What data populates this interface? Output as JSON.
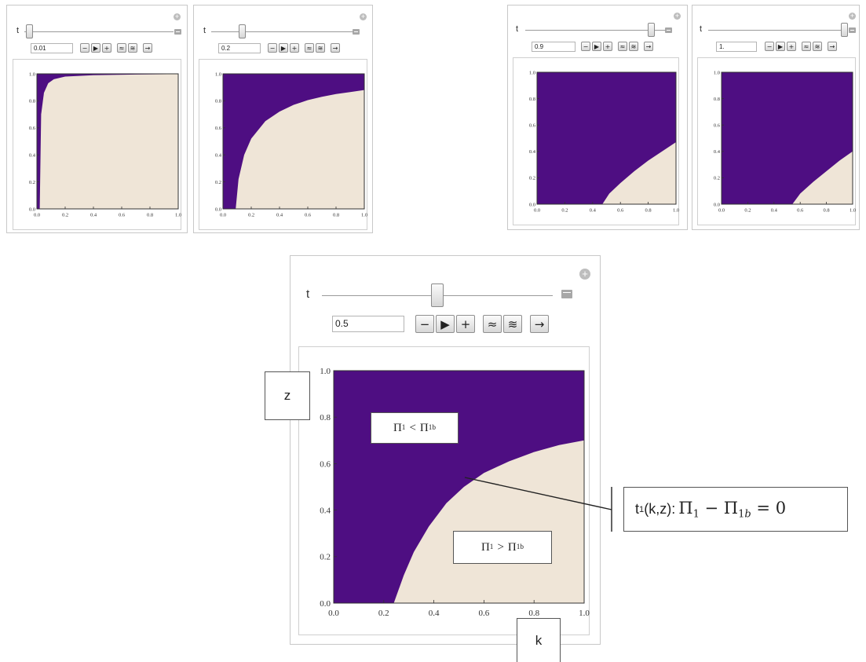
{
  "slider_label": "t",
  "panels": [
    {
      "id": "small-001",
      "t_value": "0.01",
      "slider_fraction": 0.01
    },
    {
      "id": "small-02",
      "t_value": "0.2",
      "slider_fraction": 0.2
    },
    {
      "id": "small-09",
      "t_value": "0.9",
      "slider_fraction": 0.9
    },
    {
      "id": "small-1",
      "t_value": "1.",
      "slider_fraction": 1.0
    },
    {
      "id": "main",
      "t_value": "0.5",
      "slider_fraction": 0.5
    }
  ],
  "buttons": {
    "decrement": "−",
    "play": "▶",
    "increment": "+",
    "faster": "≈",
    "slower": "≋",
    "direction": "→",
    "faster_icon": "double-chevron-up-icon",
    "slower_icon": "double-chevron-down-icon",
    "direction_icon": "arrow-right-icon"
  },
  "tick_labels": [
    "0.0",
    "0.2",
    "0.4",
    "0.6",
    "0.8",
    "1.0"
  ],
  "colors": {
    "region_below": "#4e0e82",
    "region_above": "#efe5d7"
  },
  "annotations": {
    "z_axis": "z",
    "k_axis": "k",
    "region_upper_label": {
      "lhs": "Π",
      "lhs_sub": "1",
      "op": "<",
      "rhs": "Π",
      "rhs_sub": "1b"
    },
    "region_lower_label": {
      "lhs": "Π",
      "lhs_sub": "1",
      "op": ">",
      "rhs": "Π",
      "rhs_sub": "1b"
    },
    "boundary_label": {
      "name": "t",
      "name_sub": "1",
      "args": "(k,z): ",
      "expr": "Π",
      "expr_sub": "1",
      "minus": " − ",
      "expr2": "Π",
      "expr2_sub": "b",
      "expr2_sub_prefix": "1",
      "eq": " = 0"
    }
  },
  "chart_data": [
    {
      "type": "region",
      "title": "",
      "xlabel": "",
      "ylabel": "",
      "t": 0.01,
      "xlim": [
        0,
        1
      ],
      "ylim": [
        0,
        1
      ],
      "boundary": {
        "x": [
          0.02,
          0.03,
          0.05,
          0.08,
          0.12,
          0.2,
          0.4,
          0.7,
          1.0
        ],
        "y": [
          0.0,
          0.7,
          0.86,
          0.93,
          0.96,
          0.98,
          0.99,
          0.995,
          0.998
        ]
      }
    },
    {
      "type": "region",
      "title": "",
      "xlabel": "",
      "ylabel": "",
      "t": 0.2,
      "xlim": [
        0,
        1
      ],
      "ylim": [
        0,
        1
      ],
      "boundary": {
        "x": [
          0.09,
          0.11,
          0.15,
          0.2,
          0.3,
          0.4,
          0.5,
          0.6,
          0.7,
          0.8,
          0.9,
          1.0
        ],
        "y": [
          0.0,
          0.22,
          0.4,
          0.52,
          0.65,
          0.72,
          0.77,
          0.805,
          0.83,
          0.85,
          0.865,
          0.88
        ]
      }
    },
    {
      "type": "region",
      "title": "",
      "xlabel": "",
      "ylabel": "",
      "t": 0.9,
      "xlim": [
        0,
        1
      ],
      "ylim": [
        0,
        1
      ],
      "boundary": {
        "x": [
          0.47,
          0.52,
          0.6,
          0.7,
          0.8,
          0.9,
          1.0
        ],
        "y": [
          0.0,
          0.08,
          0.16,
          0.25,
          0.33,
          0.4,
          0.47
        ]
      }
    },
    {
      "type": "region",
      "title": "",
      "xlabel": "",
      "ylabel": "",
      "t": 1.0,
      "xlim": [
        0,
        1
      ],
      "ylim": [
        0,
        1
      ],
      "boundary": {
        "x": [
          0.54,
          0.6,
          0.7,
          0.8,
          0.9,
          1.0
        ],
        "y": [
          0.0,
          0.08,
          0.17,
          0.25,
          0.33,
          0.4
        ]
      }
    },
    {
      "type": "region",
      "title": "",
      "xlabel": "",
      "ylabel": "",
      "t": 0.5,
      "xlim": [
        0,
        1
      ],
      "ylim": [
        0,
        1
      ],
      "boundary": {
        "x": [
          0.24,
          0.28,
          0.32,
          0.38,
          0.45,
          0.52,
          0.6,
          0.7,
          0.8,
          0.9,
          1.0
        ],
        "y": [
          0.0,
          0.12,
          0.22,
          0.33,
          0.43,
          0.5,
          0.56,
          0.61,
          0.65,
          0.68,
          0.7
        ]
      }
    }
  ]
}
